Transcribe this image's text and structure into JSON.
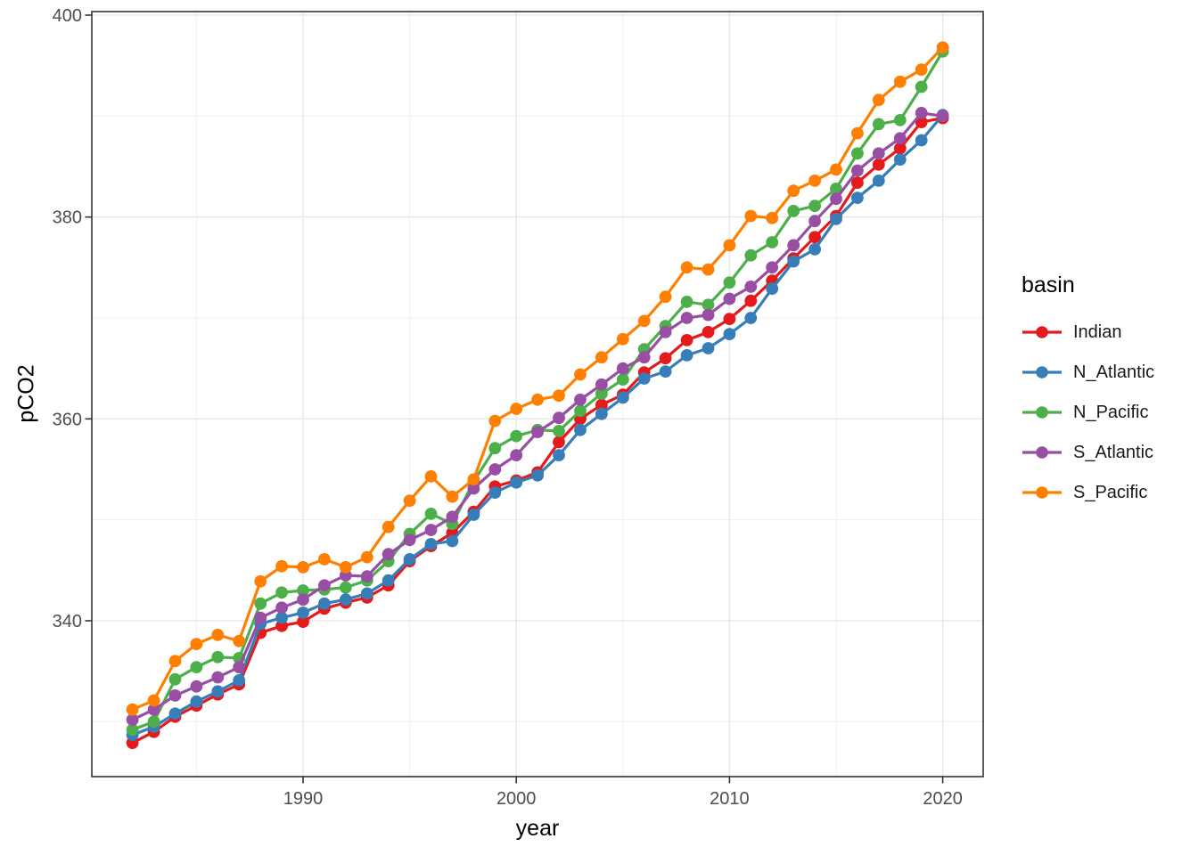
{
  "chart_data": {
    "type": "line",
    "title": "",
    "xlabel": "year",
    "ylabel": "pCO2",
    "legend_title": "basin",
    "legend_position": "right",
    "grid": true,
    "x_ticks": [
      1990,
      2000,
      2010,
      2020
    ],
    "x_tick_labels": [
      "1990",
      "2000",
      "2010",
      "2020"
    ],
    "x_minor_ticks": [
      1985,
      1995,
      2005,
      2015
    ],
    "y_ticks": [
      340,
      360,
      380,
      400
    ],
    "y_tick_labels": [
      "340",
      "360",
      "380",
      "400"
    ],
    "y_minor_ticks": [
      330,
      350,
      370,
      390
    ],
    "xlim": [
      1980.1,
      2021.9
    ],
    "ylim": [
      324.6,
      400.4
    ],
    "x": [
      1982,
      1983,
      1984,
      1985,
      1986,
      1987,
      1988,
      1989,
      1990,
      1991,
      1992,
      1993,
      1994,
      1995,
      1996,
      1997,
      1998,
      1999,
      2000,
      2001,
      2002,
      2003,
      2004,
      2005,
      2006,
      2007,
      2008,
      2009,
      2010,
      2011,
      2012,
      2013,
      2014,
      2015,
      2016,
      2017,
      2018,
      2019,
      2020
    ],
    "series": [
      {
        "name": "Indian",
        "color": "#E41A1C",
        "values": [
          327.9,
          329.0,
          330.5,
          331.6,
          332.7,
          333.7,
          338.8,
          339.5,
          339.9,
          341.2,
          341.8,
          342.3,
          343.5,
          345.9,
          347.4,
          348.7,
          350.8,
          353.3,
          353.9,
          354.7,
          357.7,
          360.0,
          361.4,
          362.4,
          364.6,
          366.0,
          367.8,
          368.6,
          369.9,
          371.7,
          373.7,
          375.9,
          378.0,
          380.1,
          383.4,
          385.2,
          386.8,
          389.4,
          389.8
        ]
      },
      {
        "name": "N_Atlantic",
        "color": "#377EB8",
        "values": [
          328.7,
          329.5,
          330.8,
          332.0,
          333.0,
          334.1,
          339.7,
          340.3,
          340.8,
          341.7,
          342.1,
          342.7,
          344.0,
          346.1,
          347.6,
          347.9,
          350.5,
          352.7,
          353.7,
          354.4,
          356.4,
          358.9,
          360.5,
          362.1,
          364.0,
          364.7,
          366.3,
          367.0,
          368.4,
          370.0,
          372.9,
          375.6,
          376.8,
          379.8,
          381.9,
          383.6,
          385.7,
          387.6,
          390.1
        ]
      },
      {
        "name": "N_Pacific",
        "color": "#4DAF4A",
        "values": [
          329.2,
          330.0,
          334.2,
          335.4,
          336.4,
          336.3,
          341.7,
          342.8,
          343.0,
          343.1,
          343.3,
          344.0,
          345.9,
          348.6,
          350.6,
          349.6,
          353.8,
          357.1,
          358.3,
          358.9,
          358.8,
          360.8,
          362.5,
          363.9,
          366.9,
          369.2,
          371.6,
          371.3,
          373.5,
          376.2,
          377.5,
          380.6,
          381.1,
          382.8,
          386.3,
          389.2,
          389.6,
          392.9,
          396.4
        ]
      },
      {
        "name": "S_Atlantic",
        "color": "#984EA3",
        "values": [
          330.2,
          331.2,
          332.6,
          333.5,
          334.4,
          335.4,
          340.3,
          341.3,
          342.1,
          343.5,
          344.5,
          344.4,
          346.6,
          348.0,
          349.0,
          350.3,
          353.1,
          355.0,
          356.4,
          358.7,
          360.1,
          361.9,
          363.4,
          365.0,
          366.1,
          368.6,
          370.0,
          370.3,
          371.9,
          373.1,
          375.0,
          377.2,
          379.6,
          381.8,
          384.6,
          386.3,
          387.8,
          390.3,
          390.0
        ]
      },
      {
        "name": "S_Pacific",
        "color": "#FF7F00",
        "values": [
          331.2,
          332.1,
          336.0,
          337.7,
          338.6,
          338.0,
          343.9,
          345.4,
          345.3,
          346.1,
          345.3,
          346.3,
          349.3,
          351.9,
          354.3,
          352.3,
          354.0,
          359.8,
          361.0,
          361.9,
          362.3,
          364.4,
          366.1,
          367.9,
          369.7,
          372.1,
          375.0,
          374.8,
          377.2,
          380.1,
          379.9,
          382.6,
          383.6,
          384.7,
          388.3,
          391.6,
          393.4,
          394.6,
          396.8
        ]
      }
    ]
  },
  "colors": {
    "background": "#FFFFFF",
    "panel_border": "#333333",
    "grid_major": "#E6E6E6",
    "grid_minor": "#F1F1F1",
    "tick_mark": "#333333",
    "tick_label": "#4D4D4D",
    "axis_title": "#000000",
    "legend_label": "#1A1A1A"
  }
}
